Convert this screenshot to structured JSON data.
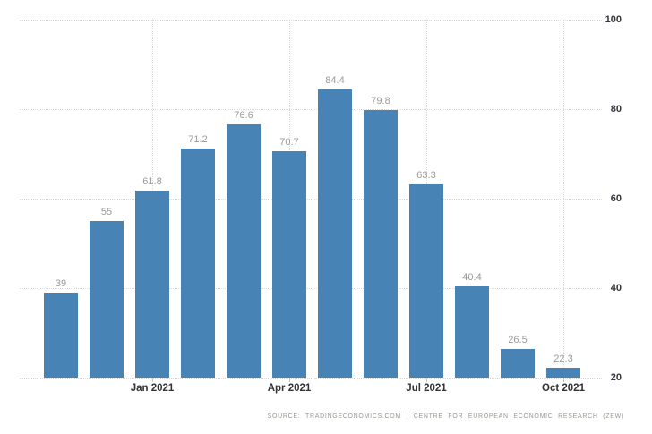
{
  "chart_data": {
    "type": "bar",
    "values": [
      39,
      55,
      61.8,
      71.2,
      76.6,
      70.7,
      84.4,
      79.8,
      63.3,
      40.4,
      26.5,
      22.3
    ],
    "bar_labels": [
      "39",
      "55",
      "61.8",
      "71.2",
      "76.6",
      "70.7",
      "84.4",
      "79.8",
      "63.3",
      "40.4",
      "26.5",
      "22.3"
    ],
    "x_tick_labels": [
      {
        "index": 2,
        "label": "Jan 2021"
      },
      {
        "index": 5,
        "label": "Apr 2021"
      },
      {
        "index": 8,
        "label": "Jul 2021"
      },
      {
        "index": 11,
        "label": "Oct 2021"
      }
    ],
    "y_ticks": [
      100,
      80,
      60,
      40,
      20
    ],
    "ylim": [
      20,
      100
    ],
    "title": "",
    "xlabel": "",
    "ylabel": "",
    "legend": "none",
    "y_axis_side": "right",
    "grid": "dotted",
    "bar_color": "#4783b5",
    "value_label_color": "#999999",
    "axis_label_color": "#333333",
    "gridline_color": "#d9d9d9"
  },
  "footer": {
    "source_text": "SOURCE: TRADINGECONOMICS.COM | CENTRE FOR EUROPEAN ECONOMIC RESEARCH (ZEW)"
  }
}
